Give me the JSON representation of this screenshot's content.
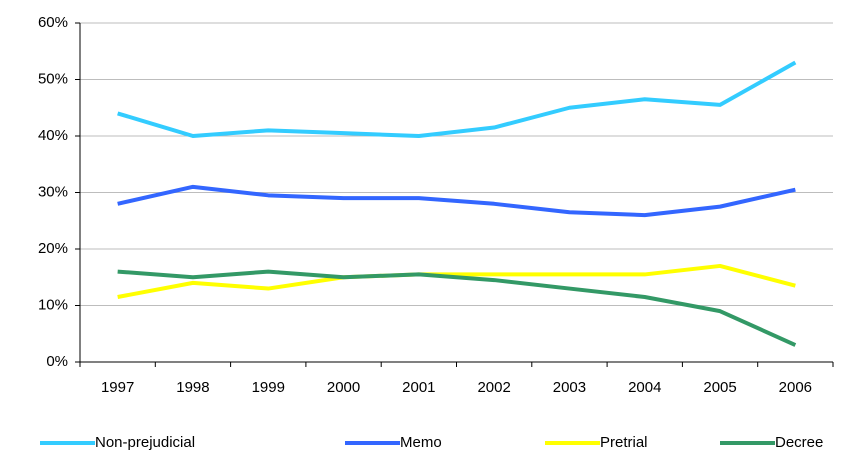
{
  "chart_data": {
    "type": "line",
    "categories": [
      "1997",
      "1998",
      "1999",
      "2000",
      "2001",
      "2002",
      "2003",
      "2004",
      "2005",
      "2006"
    ],
    "series": [
      {
        "name": "Non-prejudicial",
        "color": "#33ccff",
        "values": [
          44,
          40,
          41,
          40.5,
          40,
          41.5,
          45,
          46.5,
          45.5,
          53
        ]
      },
      {
        "name": "Memo",
        "color": "#3366ff",
        "values": [
          28,
          31,
          29.5,
          29,
          29,
          28,
          26.5,
          26,
          27.5,
          30.5
        ]
      },
      {
        "name": "Pretrial",
        "color": "#ffff00",
        "values": [
          11.5,
          14,
          13,
          15,
          15.5,
          15.5,
          15.5,
          15.5,
          17,
          13.5
        ]
      },
      {
        "name": "Decree",
        "color": "#339966",
        "values": [
          16,
          15,
          16,
          15,
          15.5,
          14.5,
          13,
          11.5,
          9,
          3
        ]
      }
    ],
    "ylim": [
      0,
      60
    ],
    "yticks": [
      {
        "value": 0,
        "label": "0%"
      },
      {
        "value": 10,
        "label": "10%"
      },
      {
        "value": 20,
        "label": "20%"
      },
      {
        "value": 30,
        "label": "30%"
      },
      {
        "value": 40,
        "label": "40%"
      },
      {
        "value": 50,
        "label": "50%"
      },
      {
        "value": 60,
        "label": "60%"
      }
    ],
    "grid": true,
    "legend": "bottom"
  }
}
